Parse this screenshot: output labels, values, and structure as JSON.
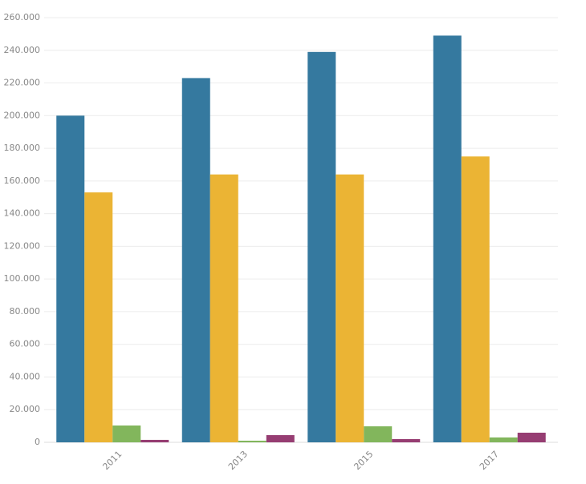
{
  "chart_data": {
    "type": "bar",
    "categories": [
      "2011",
      "2013",
      "2015",
      "2017"
    ],
    "series": [
      {
        "color": "#35799f",
        "values": [
          200000,
          223000,
          239000,
          249000
        ]
      },
      {
        "color": "#ebb434",
        "values": [
          153000,
          164000,
          164000,
          175000
        ]
      },
      {
        "color": "#82b65c",
        "values": [
          10300,
          1000,
          9800,
          3000
        ]
      },
      {
        "color": "#963d72",
        "values": [
          1500,
          4400,
          2000,
          5900
        ]
      }
    ],
    "ylim": [
      0,
      260000
    ],
    "yticks": [
      0,
      {
        "value": 20000,
        "label": "20.000"
      },
      {
        "value": 40000,
        "label": "40.000"
      },
      {
        "value": 60000,
        "label": "60.000"
      },
      {
        "value": 80000,
        "label": "80.000"
      },
      {
        "value": 100000,
        "label": "100.000"
      },
      {
        "value": 120000,
        "label": "120.000"
      },
      {
        "value": 140000,
        "label": "140.000"
      },
      {
        "value": 160000,
        "label": "160.000"
      },
      {
        "value": 180000,
        "label": "180.000"
      },
      {
        "value": 200000,
        "label": "200.000"
      },
      {
        "value": 220000,
        "label": "220.000"
      },
      {
        "value": 240000,
        "label": "240.000"
      },
      {
        "value": 260000,
        "label": "260.000"
      }
    ],
    "grid": true
  }
}
